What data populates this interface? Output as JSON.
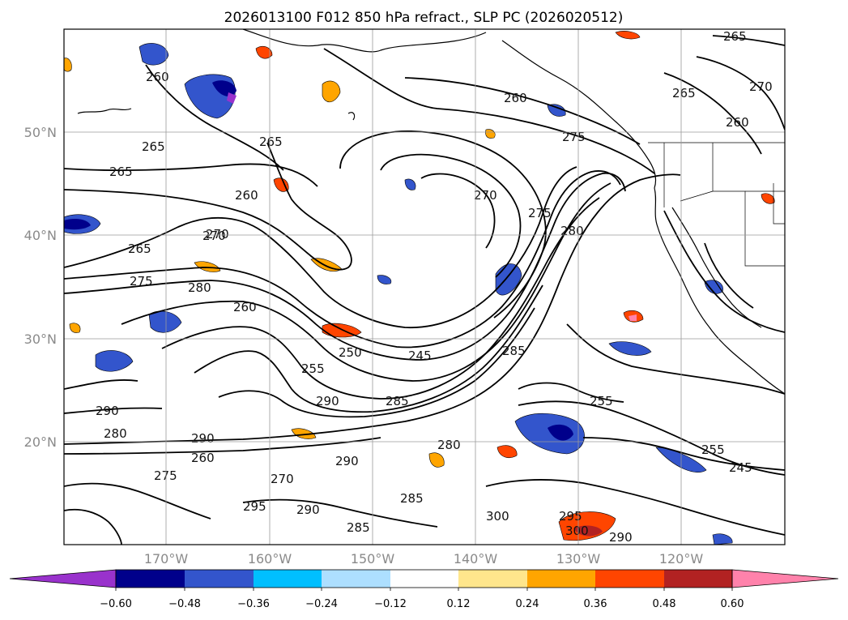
{
  "title": "2026013100 F012 850 hPa refract., SLP PC (2026020512)",
  "lat_labels": [
    "50°N",
    "40°N",
    "30°N",
    "20°N"
  ],
  "lon_labels": [
    "170°W",
    "160°W",
    "150°W",
    "140°W",
    "130°W",
    "120°W"
  ],
  "colorbar": {
    "ticks": [
      "−0.60",
      "−0.48",
      "−0.36",
      "−0.24",
      "−0.12",
      "0.12",
      "0.24",
      "0.36",
      "0.48",
      "0.60"
    ],
    "colors": [
      "#9932CC",
      "#00008B",
      "#3355CC",
      "#00BFFF",
      "#ADDFFF",
      "#FFFFFF",
      "#FFE68C",
      "#FFA500",
      "#FF4500",
      "#B22222",
      "#FF82AB"
    ]
  },
  "contour_labels": [
    "260",
    "265",
    "265",
    "265",
    "260",
    "260",
    "270",
    "275",
    "265",
    "270",
    "275",
    "280",
    "260",
    "270",
    "250",
    "245",
    "255",
    "280",
    "275",
    "285",
    "290",
    "280",
    "290",
    "290",
    "270",
    "285",
    "295",
    "300",
    "285",
    "290",
    "255",
    "255",
    "245",
    "260",
    "265",
    "270",
    "265",
    "260",
    "285",
    "290",
    "295",
    "300",
    "290",
    "280",
    "275"
  ]
}
